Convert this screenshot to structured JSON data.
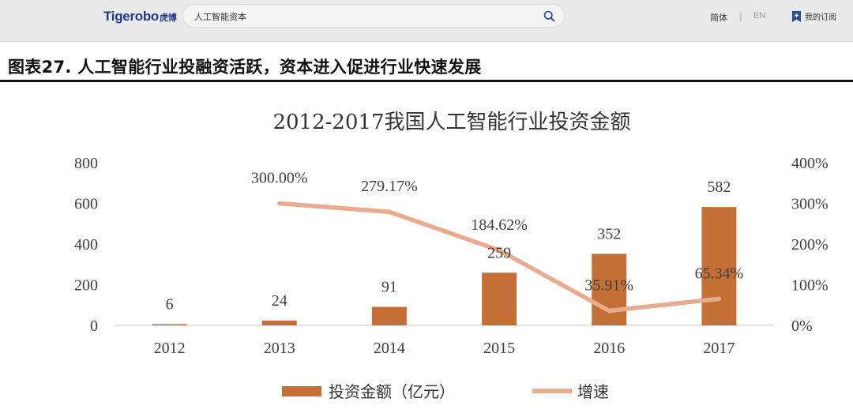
{
  "nav": {
    "logo": "Tigerobo",
    "logo_cn": "虎博",
    "search_value": "人工智能资本",
    "lang_cn": "简体",
    "lang_sep": "|",
    "lang_en": "EN",
    "subscribe": "我的订阅"
  },
  "figure": {
    "title": "图表27. 人工智能行业投融资活跃，资本进入促进行业快速发展"
  },
  "colors": {
    "bar": "#c46f35",
    "line": "#e8ab8d",
    "axis": "#d9d9d9",
    "nav_bg": "#e9e9e9",
    "logo": "#1f3a8a"
  },
  "chart_data": {
    "type": "bar",
    "title": "2012-2017我国人工智能行业投资金额",
    "categories": [
      "2012",
      "2013",
      "2014",
      "2015",
      "2016",
      "2017"
    ],
    "series": [
      {
        "name": "投资金额（亿元）",
        "type": "bar",
        "axis": "left",
        "values": [
          6,
          24,
          91,
          259,
          352,
          582
        ],
        "labels": [
          "6",
          "24",
          "91",
          "259",
          "352",
          "582"
        ]
      },
      {
        "name": "增速",
        "type": "line",
        "axis": "right",
        "values": [
          null,
          300.0,
          279.17,
          184.62,
          35.91,
          65.34
        ],
        "labels": [
          "",
          "300.00%",
          "279.17%",
          "184.62%",
          "35.91%",
          "65.34%"
        ]
      }
    ],
    "y_left": {
      "ylim": [
        0,
        800
      ],
      "ticks": [
        "800",
        "600",
        "400",
        "200",
        "0"
      ]
    },
    "y_right": {
      "ylim": [
        0,
        400
      ],
      "ticks": [
        "400%",
        "300%",
        "200%",
        "100%",
        "0%"
      ]
    },
    "grid": false,
    "legend_position": "bottom"
  }
}
